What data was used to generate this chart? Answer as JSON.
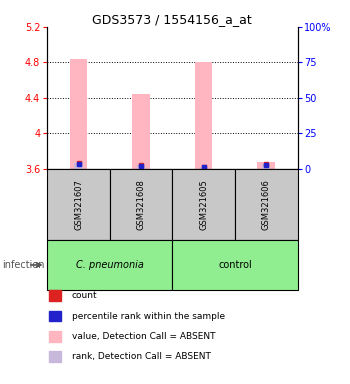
{
  "title": "GDS3573 / 1554156_a_at",
  "samples": [
    "GSM321607",
    "GSM321608",
    "GSM321605",
    "GSM321606"
  ],
  "group_colors": [
    "#90EE90",
    "#90EE90"
  ],
  "bar_value_color": "#FFB6C1",
  "bar_rank_color": "#C8B8DC",
  "dot_value_color": "#DD2222",
  "dot_rank_color": "#2222CC",
  "ylim_left": [
    3.6,
    5.2
  ],
  "ylim_right": [
    0,
    100
  ],
  "yticks_left": [
    3.6,
    4.0,
    4.4,
    4.8,
    5.2
  ],
  "yticks_right": [
    0,
    25,
    50,
    75,
    100
  ],
  "ytick_labels_left": [
    "3.6",
    "4",
    "4.4",
    "4.8",
    "5.2"
  ],
  "ytick_labels_right": [
    "0",
    "25",
    "50",
    "75",
    "100%"
  ],
  "value_bars": [
    4.84,
    4.44,
    4.8,
    3.68
  ],
  "rank_bars": [
    3.665,
    3.645,
    3.625,
    3.655
  ],
  "value_dots": [
    3.665,
    3.645,
    3.625,
    3.655
  ],
  "rank_dots": [
    3.658,
    3.638,
    3.618,
    3.648
  ],
  "baseline": 3.6,
  "legend_items": [
    {
      "color": "#DD2222",
      "label": "count"
    },
    {
      "color": "#2222CC",
      "label": "percentile rank within the sample"
    },
    {
      "color": "#FFB6C1",
      "label": "value, Detection Call = ABSENT"
    },
    {
      "color": "#C8B8DC",
      "label": "rank, Detection Call = ABSENT"
    }
  ],
  "infection_label": "infection",
  "sample_box_color": "#C8C8C8",
  "grid_yticks": [
    4.0,
    4.4,
    4.8
  ]
}
